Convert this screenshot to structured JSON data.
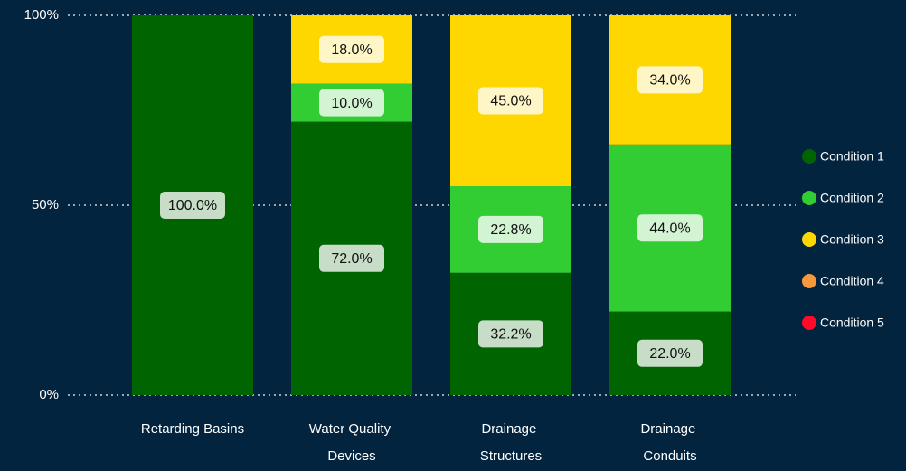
{
  "chart_data": {
    "type": "stacked_bar_100",
    "categories": [
      "Retarding Basins",
      "Water Quality Devices",
      "Drainage Structures",
      "Drainage Conduits"
    ],
    "series": [
      {
        "name": "Condition 1",
        "color": "#006400",
        "values": [
          100,
          72,
          32.2,
          22
        ],
        "value_labels": [
          "100.0%",
          "72.0%",
          "32.2%",
          "22.0%"
        ]
      },
      {
        "name": "Condition 2",
        "color": "#32cd32",
        "values": [
          0,
          10,
          22.8,
          44
        ],
        "value_labels": [
          null,
          "10.0%",
          "22.8%",
          "44.0%"
        ]
      },
      {
        "name": "Condition 3",
        "color": "#ffd700",
        "values": [
          0,
          18,
          45,
          34
        ],
        "value_labels": [
          null,
          "18.0%",
          "45.0%",
          "34.0%"
        ]
      },
      {
        "name": "Condition 4",
        "color": "#f7993a",
        "values": [
          0,
          0,
          0,
          0
        ],
        "value_labels": [
          null,
          null,
          null,
          null
        ]
      },
      {
        "name": "Condition 5",
        "color": "#ff0a28",
        "values": [
          0,
          0,
          0,
          0
        ],
        "value_labels": [
          null,
          null,
          null,
          null
        ]
      }
    ],
    "ylim": [
      0,
      100
    ],
    "yticks": [
      {
        "value": 0,
        "label": "0%"
      },
      {
        "value": 50,
        "label": "50%"
      },
      {
        "value": 100,
        "label": "100%"
      }
    ],
    "grid": true,
    "legend": "right"
  }
}
